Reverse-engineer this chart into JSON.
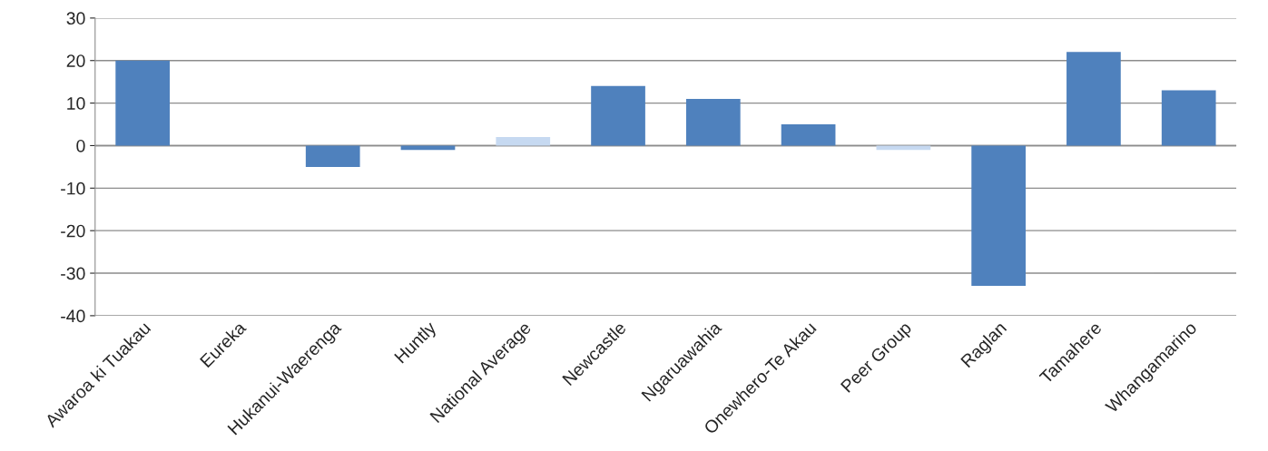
{
  "chart_data": {
    "type": "bar",
    "categories": [
      "Awaroa ki Tuakau",
      "Eureka",
      "Hukanui-Waerenga",
      "Huntly",
      "National Average",
      "Newcastle",
      "Ngaruawahia",
      "Onewhero-Te Akau",
      "Peer Group",
      "Raglan",
      "Tamahere",
      "Whangamarino"
    ],
    "values": [
      20,
      0,
      -5,
      -1,
      2,
      14,
      11,
      5,
      -1,
      -33,
      22,
      13
    ],
    "colors": [
      "#4f81bd",
      "#4f81bd",
      "#4f81bd",
      "#4f81bd",
      "#c6d9f1",
      "#4f81bd",
      "#4f81bd",
      "#4f81bd",
      "#c6d9f1",
      "#4f81bd",
      "#4f81bd",
      "#4f81bd"
    ],
    "ylim": [
      -40,
      30
    ],
    "yticks": [
      -40,
      -30,
      -20,
      -10,
      0,
      10,
      20,
      30
    ],
    "grid": "y"
  }
}
